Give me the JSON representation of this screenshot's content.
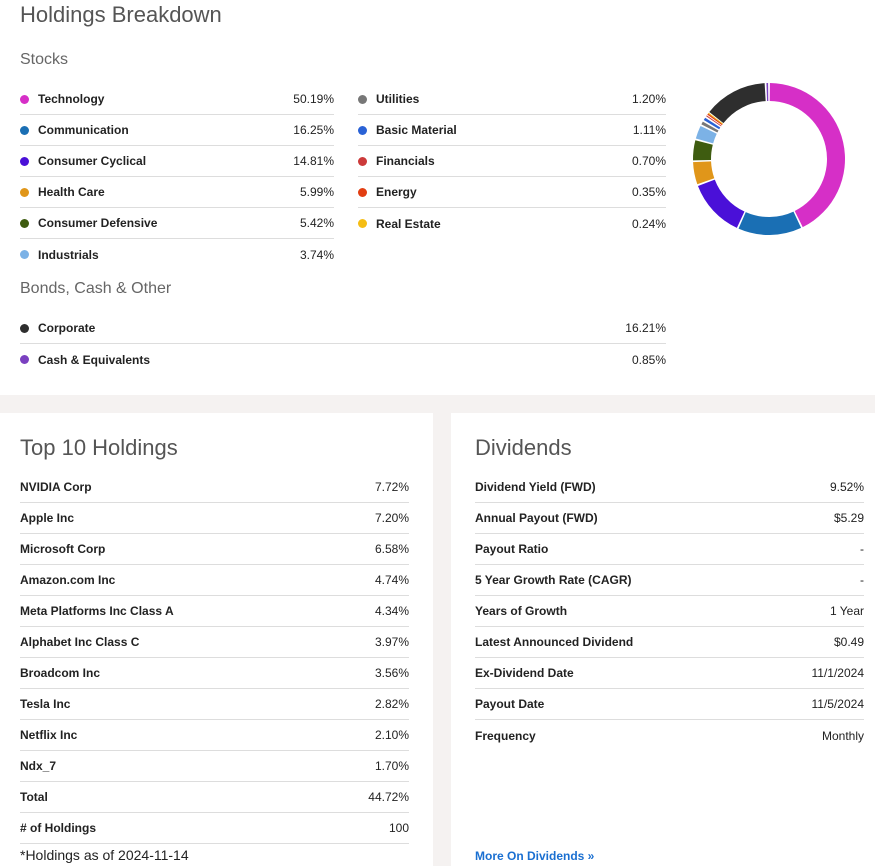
{
  "breakdown": {
    "title": "Holdings Breakdown",
    "stocks_label": "Stocks",
    "bonds_label": "Bonds, Cash & Other",
    "stocks_left": [
      {
        "name": "Technology",
        "value": "50.19%",
        "color": "#d62fc7"
      },
      {
        "name": "Communication",
        "value": "16.25%",
        "color": "#1a6fb4"
      },
      {
        "name": "Consumer Cyclical",
        "value": "14.81%",
        "color": "#4a10d8"
      },
      {
        "name": "Health Care",
        "value": "5.99%",
        "color": "#e0961a"
      },
      {
        "name": "Consumer Defensive",
        "value": "5.42%",
        "color": "#3e5c10"
      },
      {
        "name": "Industrials",
        "value": "3.74%",
        "color": "#7cb2e6"
      }
    ],
    "stocks_right": [
      {
        "name": "Utilities",
        "value": "1.20%",
        "color": "#777777"
      },
      {
        "name": "Basic Material",
        "value": "1.11%",
        "color": "#2a62d6"
      },
      {
        "name": "Financials",
        "value": "0.70%",
        "color": "#cc3a3a"
      },
      {
        "name": "Energy",
        "value": "0.35%",
        "color": "#e23e12"
      },
      {
        "name": "Real Estate",
        "value": "0.24%",
        "color": "#f5bd14"
      }
    ],
    "other": [
      {
        "name": "Corporate",
        "value": "16.21%",
        "color": "#2e2e2e"
      },
      {
        "name": "Cash & Equivalents",
        "value": "0.85%",
        "color": "#7a40c0"
      }
    ]
  },
  "chart_data": {
    "type": "pie",
    "categories": [
      "Technology",
      "Communication",
      "Consumer Cyclical",
      "Health Care",
      "Consumer Defensive",
      "Industrials",
      "Utilities",
      "Basic Material",
      "Financials",
      "Energy",
      "Real Estate",
      "Corporate",
      "Cash & Equivalents"
    ],
    "values": [
      50.19,
      16.25,
      14.81,
      5.99,
      5.42,
      3.74,
      1.2,
      1.11,
      0.7,
      0.35,
      0.24,
      16.21,
      0.85
    ],
    "colors": [
      "#d62fc7",
      "#1a6fb4",
      "#4a10d8",
      "#e0961a",
      "#3e5c10",
      "#7cb2e6",
      "#777777",
      "#2a62d6",
      "#cc3a3a",
      "#e23e12",
      "#f5bd14",
      "#2e2e2e",
      "#7a40c0"
    ],
    "style": "donut"
  },
  "top10": {
    "title": "Top 10 Holdings",
    "rows": [
      {
        "name": "NVIDIA Corp",
        "value": "7.72%"
      },
      {
        "name": "Apple Inc",
        "value": "7.20%"
      },
      {
        "name": "Microsoft Corp",
        "value": "6.58%"
      },
      {
        "name": "Amazon.com Inc",
        "value": "4.74%"
      },
      {
        "name": "Meta Platforms Inc Class A",
        "value": "4.34%"
      },
      {
        "name": "Alphabet Inc Class C",
        "value": "3.97%"
      },
      {
        "name": "Broadcom Inc",
        "value": "3.56%"
      },
      {
        "name": "Tesla Inc",
        "value": "2.82%"
      },
      {
        "name": "Netflix Inc",
        "value": "2.10%"
      },
      {
        "name": "Ndx_7",
        "value": "1.70%"
      },
      {
        "name": "Total",
        "value": "44.72%"
      },
      {
        "name": "# of Holdings",
        "value": "100"
      }
    ],
    "footnote": "*Holdings as of 2024-11-14"
  },
  "dividends": {
    "title": "Dividends",
    "rows": [
      {
        "name": "Dividend Yield (FWD)",
        "value": "9.52%"
      },
      {
        "name": "Annual Payout (FWD)",
        "value": "$5.29"
      },
      {
        "name": "Payout Ratio",
        "value": "-"
      },
      {
        "name": "5 Year Growth Rate (CAGR)",
        "value": "-"
      },
      {
        "name": "Years of Growth",
        "value": "1 Year"
      },
      {
        "name": "Latest Announced Dividend",
        "value": "$0.49"
      },
      {
        "name": "Ex-Dividend Date",
        "value": "11/1/2024"
      },
      {
        "name": "Payout Date",
        "value": "11/5/2024"
      },
      {
        "name": "Frequency",
        "value": "Monthly"
      }
    ],
    "more_link": "More On Dividends »"
  }
}
